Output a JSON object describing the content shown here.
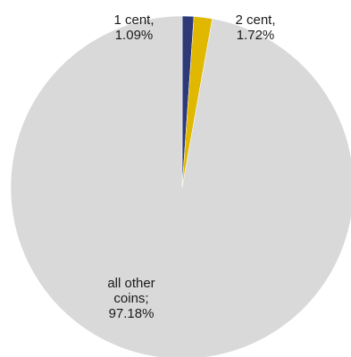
{
  "chart_data": {
    "type": "pie",
    "title": "",
    "slices": [
      {
        "label_lines": [
          "1 cent,",
          "1.09%"
        ],
        "value": 1.09,
        "color": "#2e3a78"
      },
      {
        "label_lines": [
          "2 cent,",
          "1.72%"
        ],
        "value": 1.72,
        "color": "#e0b800"
      },
      {
        "label_lines": [
          "all other",
          "coins;",
          "97.18%"
        ],
        "value": 97.18,
        "color": "#d9d9d9"
      }
    ],
    "legend": "none"
  }
}
